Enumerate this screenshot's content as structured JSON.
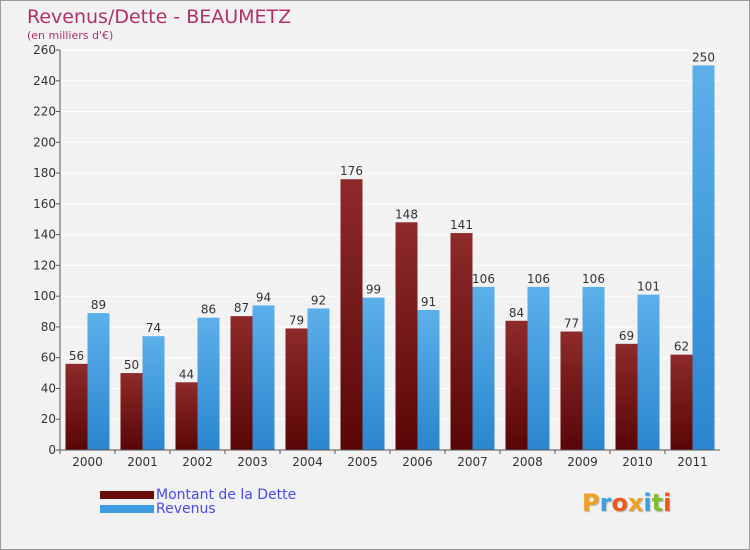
{
  "header": {
    "title": "Revenus/Dette - BEAUMETZ",
    "subtitle": "(en milliers d'€)"
  },
  "legend": {
    "items": [
      {
        "label": "Montant de la Dette",
        "color": "#6b0c0c"
      },
      {
        "label": "Revenus",
        "color": "#3d9be0"
      }
    ]
  },
  "logo": {
    "text": "Proxiti",
    "colors": [
      "#f0a020",
      "#3aa0e0",
      "#e85a20",
      "#f0a020",
      "#3aa0e0",
      "#80c030",
      "#e85a20"
    ]
  },
  "chart_data": {
    "type": "bar",
    "title": "Revenus/Dette - BEAUMETZ",
    "subtitle": "(en milliers d'€)",
    "categories": [
      "2000",
      "2001",
      "2002",
      "2003",
      "2004",
      "2005",
      "2006",
      "2007",
      "2008",
      "2009",
      "2010",
      "2011"
    ],
    "series": [
      {
        "name": "Montant de la Dette",
        "color": "#8b1a1a",
        "values": [
          56,
          50,
          44,
          87,
          79,
          176,
          148,
          141,
          84,
          77,
          69,
          62
        ]
      },
      {
        "name": "Revenus",
        "color": "#3d9be0",
        "values": [
          89,
          74,
          86,
          94,
          92,
          99,
          91,
          106,
          106,
          106,
          101,
          250
        ]
      }
    ],
    "ylim": [
      0,
      260
    ],
    "yticks": [
      0,
      20,
      40,
      60,
      80,
      100,
      120,
      140,
      160,
      180,
      200,
      220,
      240,
      260
    ],
    "grid": true,
    "data_labels": true,
    "legend_position": "bottom-left"
  }
}
